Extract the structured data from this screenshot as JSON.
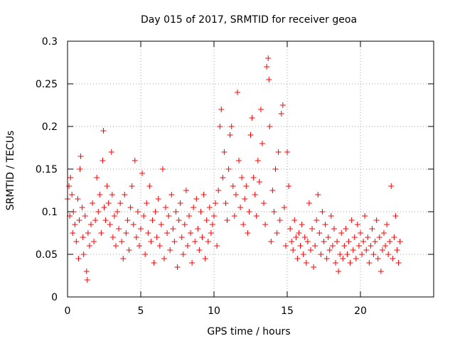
{
  "chart_data": {
    "type": "scatter",
    "title": "Day 015 of 2017, SRMTID for receiver geoa",
    "xlabel": "GPS time / hours",
    "ylabel": "SRMTID / TECUs",
    "xlim": [
      0,
      25
    ],
    "ylim": [
      0,
      0.3
    ],
    "xticks": [
      0,
      5,
      10,
      15,
      20
    ],
    "xtick_labels": [
      "0",
      "5",
      "10",
      "15",
      "20"
    ],
    "yticks": [
      0,
      0.05,
      0.1,
      0.15,
      0.2,
      0.25,
      0.3
    ],
    "ytick_labels": [
      "0",
      "0.05",
      "0.1",
      "0.15",
      "0.2",
      "0.25",
      "0.3"
    ],
    "grid": true,
    "marker": "+",
    "color": "#ff0000",
    "series": [
      {
        "name": "SRMTID",
        "points": [
          [
            0.0,
            0.115
          ],
          [
            0.1,
            0.13
          ],
          [
            0.15,
            0.095
          ],
          [
            0.2,
            0.14
          ],
          [
            0.3,
            0.12
          ],
          [
            0.35,
            0.075
          ],
          [
            0.4,
            0.1
          ],
          [
            0.5,
            0.085
          ],
          [
            0.6,
            0.065
          ],
          [
            0.7,
            0.115
          ],
          [
            0.75,
            0.045
          ],
          [
            0.8,
            0.09
          ],
          [
            0.85,
            0.15
          ],
          [
            0.9,
            0.165
          ],
          [
            1.0,
            0.105
          ],
          [
            1.05,
            0.07
          ],
          [
            1.1,
            0.05
          ],
          [
            1.2,
            0.095
          ],
          [
            1.3,
            0.03
          ],
          [
            1.35,
            0.02
          ],
          [
            1.4,
            0.075
          ],
          [
            1.5,
            0.06
          ],
          [
            1.6,
            0.085
          ],
          [
            1.7,
            0.11
          ],
          [
            1.8,
            0.065
          ],
          [
            1.9,
            0.09
          ],
          [
            2.0,
            0.14
          ],
          [
            2.1,
            0.1
          ],
          [
            2.2,
            0.12
          ],
          [
            2.3,
            0.075
          ],
          [
            2.4,
            0.16
          ],
          [
            2.45,
            0.195
          ],
          [
            2.5,
            0.105
          ],
          [
            2.6,
            0.09
          ],
          [
            2.7,
            0.13
          ],
          [
            2.8,
            0.11
          ],
          [
            2.9,
            0.085
          ],
          [
            3.0,
            0.17
          ],
          [
            3.05,
            0.12
          ],
          [
            3.1,
            0.07
          ],
          [
            3.2,
            0.095
          ],
          [
            3.3,
            0.06
          ],
          [
            3.4,
            0.1
          ],
          [
            3.5,
            0.08
          ],
          [
            3.6,
            0.11
          ],
          [
            3.7,
            0.065
          ],
          [
            3.8,
            0.045
          ],
          [
            3.9,
            0.12
          ],
          [
            4.0,
            0.075
          ],
          [
            4.1,
            0.09
          ],
          [
            4.2,
            0.055
          ],
          [
            4.3,
            0.105
          ],
          [
            4.4,
            0.13
          ],
          [
            4.5,
            0.085
          ],
          [
            4.6,
            0.16
          ],
          [
            4.7,
            0.07
          ],
          [
            4.8,
            0.1
          ],
          [
            4.9,
            0.06
          ],
          [
            5.0,
            0.08
          ],
          [
            5.1,
            0.145
          ],
          [
            5.2,
            0.095
          ],
          [
            5.3,
            0.05
          ],
          [
            5.4,
            0.11
          ],
          [
            5.5,
            0.075
          ],
          [
            5.6,
            0.13
          ],
          [
            5.7,
            0.065
          ],
          [
            5.8,
            0.09
          ],
          [
            5.9,
            0.04
          ],
          [
            6.0,
            0.1
          ],
          [
            6.1,
            0.07
          ],
          [
            6.2,
            0.115
          ],
          [
            6.3,
            0.06
          ],
          [
            6.4,
            0.085
          ],
          [
            6.5,
            0.15
          ],
          [
            6.6,
            0.045
          ],
          [
            6.7,
            0.105
          ],
          [
            6.8,
            0.075
          ],
          [
            6.9,
            0.095
          ],
          [
            7.0,
            0.055
          ],
          [
            7.1,
            0.12
          ],
          [
            7.2,
            0.08
          ],
          [
            7.3,
            0.065
          ],
          [
            7.4,
            0.1
          ],
          [
            7.5,
            0.035
          ],
          [
            7.6,
            0.09
          ],
          [
            7.7,
            0.11
          ],
          [
            7.8,
            0.07
          ],
          [
            7.9,
            0.05
          ],
          [
            8.0,
            0.085
          ],
          [
            8.1,
            0.125
          ],
          [
            8.2,
            0.06
          ],
          [
            8.3,
            0.095
          ],
          [
            8.4,
            0.075
          ],
          [
            8.5,
            0.04
          ],
          [
            8.6,
            0.105
          ],
          [
            8.7,
            0.065
          ],
          [
            8.8,
            0.115
          ],
          [
            8.9,
            0.08
          ],
          [
            9.0,
            0.055
          ],
          [
            9.1,
            0.1
          ],
          [
            9.2,
            0.07
          ],
          [
            9.3,
            0.12
          ],
          [
            9.4,
            0.045
          ],
          [
            9.5,
            0.09
          ],
          [
            9.6,
            0.065
          ],
          [
            9.7,
            0.105
          ],
          [
            9.8,
            0.075
          ],
          [
            9.9,
            0.085
          ],
          [
            10.0,
            0.095
          ],
          [
            10.1,
            0.11
          ],
          [
            10.2,
            0.06
          ],
          [
            10.3,
            0.125
          ],
          [
            10.4,
            0.2
          ],
          [
            10.5,
            0.22
          ],
          [
            10.6,
            0.14
          ],
          [
            10.7,
            0.17
          ],
          [
            10.8,
            0.11
          ],
          [
            10.9,
            0.09
          ],
          [
            11.0,
            0.15
          ],
          [
            11.1,
            0.19
          ],
          [
            11.2,
            0.2
          ],
          [
            11.3,
            0.13
          ],
          [
            11.4,
            0.095
          ],
          [
            11.5,
            0.12
          ],
          [
            11.6,
            0.24
          ],
          [
            11.7,
            0.16
          ],
          [
            11.8,
            0.105
          ],
          [
            11.9,
            0.14
          ],
          [
            12.0,
            0.085
          ],
          [
            12.1,
            0.115
          ],
          [
            12.2,
            0.13
          ],
          [
            12.3,
            0.075
          ],
          [
            12.4,
            0.1
          ],
          [
            12.5,
            0.19
          ],
          [
            12.6,
            0.21
          ],
          [
            12.7,
            0.14
          ],
          [
            12.8,
            0.12
          ],
          [
            12.9,
            0.095
          ],
          [
            13.0,
            0.16
          ],
          [
            13.1,
            0.135
          ],
          [
            13.2,
            0.22
          ],
          [
            13.3,
            0.18
          ],
          [
            13.4,
            0.11
          ],
          [
            13.5,
            0.085
          ],
          [
            13.6,
            0.27
          ],
          [
            13.7,
            0.28
          ],
          [
            13.75,
            0.255
          ],
          [
            13.8,
            0.2
          ],
          [
            13.9,
            0.065
          ],
          [
            14.0,
            0.125
          ],
          [
            14.1,
            0.1
          ],
          [
            14.2,
            0.15
          ],
          [
            14.3,
            0.075
          ],
          [
            14.4,
            0.17
          ],
          [
            14.5,
            0.09
          ],
          [
            14.6,
            0.215
          ],
          [
            14.7,
            0.225
          ],
          [
            14.8,
            0.105
          ],
          [
            14.9,
            0.06
          ],
          [
            15.0,
            0.17
          ],
          [
            15.1,
            0.13
          ],
          [
            15.2,
            0.08
          ],
          [
            15.3,
            0.065
          ],
          [
            15.4,
            0.055
          ],
          [
            15.5,
            0.09
          ],
          [
            15.6,
            0.07
          ],
          [
            15.7,
            0.045
          ],
          [
            15.8,
            0.075
          ],
          [
            15.9,
            0.06
          ],
          [
            16.0,
            0.085
          ],
          [
            16.1,
            0.05
          ],
          [
            16.2,
            0.07
          ],
          [
            16.3,
            0.04
          ],
          [
            16.4,
            0.065
          ],
          [
            16.5,
            0.11
          ],
          [
            16.6,
            0.055
          ],
          [
            16.7,
            0.08
          ],
          [
            16.8,
            0.035
          ],
          [
            16.9,
            0.06
          ],
          [
            17.0,
            0.09
          ],
          [
            17.1,
            0.12
          ],
          [
            17.2,
            0.075
          ],
          [
            17.3,
            0.05
          ],
          [
            17.4,
            0.1
          ],
          [
            17.5,
            0.065
          ],
          [
            17.6,
            0.085
          ],
          [
            17.7,
            0.045
          ],
          [
            17.8,
            0.07
          ],
          [
            17.9,
            0.055
          ],
          [
            18.0,
            0.095
          ],
          [
            18.1,
            0.06
          ],
          [
            18.2,
            0.08
          ],
          [
            18.3,
            0.04
          ],
          [
            18.4,
            0.065
          ],
          [
            18.5,
            0.03
          ],
          [
            18.6,
            0.05
          ],
          [
            18.7,
            0.075
          ],
          [
            18.8,
            0.045
          ],
          [
            18.9,
            0.06
          ],
          [
            19.0,
            0.08
          ],
          [
            19.1,
            0.05
          ],
          [
            19.2,
            0.065
          ],
          [
            19.3,
            0.04
          ],
          [
            19.4,
            0.09
          ],
          [
            19.5,
            0.055
          ],
          [
            19.6,
            0.07
          ],
          [
            19.7,
            0.045
          ],
          [
            19.8,
            0.085
          ],
          [
            19.9,
            0.06
          ],
          [
            20.0,
            0.075
          ],
          [
            20.1,
            0.05
          ],
          [
            20.2,
            0.065
          ],
          [
            20.3,
            0.095
          ],
          [
            20.4,
            0.055
          ],
          [
            20.5,
            0.07
          ],
          [
            20.6,
            0.04
          ],
          [
            20.7,
            0.06
          ],
          [
            20.8,
            0.08
          ],
          [
            20.9,
            0.05
          ],
          [
            21.0,
            0.065
          ],
          [
            21.1,
            0.09
          ],
          [
            21.2,
            0.045
          ],
          [
            21.3,
            0.07
          ],
          [
            21.4,
            0.03
          ],
          [
            21.5,
            0.055
          ],
          [
            21.6,
            0.075
          ],
          [
            21.7,
            0.06
          ],
          [
            21.8,
            0.085
          ],
          [
            21.9,
            0.05
          ],
          [
            22.0,
            0.065
          ],
          [
            22.1,
            0.13
          ],
          [
            22.2,
            0.045
          ],
          [
            22.3,
            0.07
          ],
          [
            22.4,
            0.095
          ],
          [
            22.5,
            0.055
          ],
          [
            22.6,
            0.04
          ],
          [
            22.7,
            0.065
          ]
        ]
      }
    ]
  }
}
